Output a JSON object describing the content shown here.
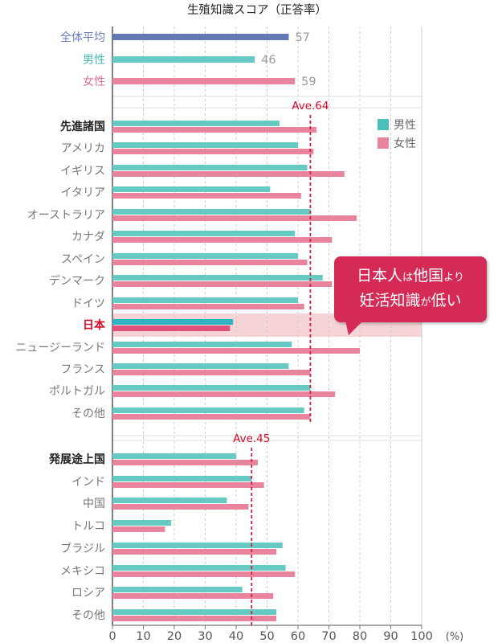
{
  "chart_data": {
    "type": "bar",
    "orientation": "horizontal",
    "title": "生殖知識スコア（正答率）",
    "x_axis": {
      "range": [
        0,
        100
      ],
      "ticks": [
        "0",
        "10",
        "20",
        "30",
        "40",
        "50",
        "60",
        "70",
        "80",
        "90",
        "100"
      ],
      "unit": "(%)"
    },
    "grid": "vertical dashed",
    "legend": {
      "position": "top-right",
      "entries": [
        {
          "label": "男性",
          "color": "#4dbfba"
        },
        {
          "label": "女性",
          "color": "#e8849e"
        }
      ]
    },
    "colors": {
      "all": "#6378b4",
      "male": "#66c9c4",
      "female": "#e8849e",
      "japan_male": "#2eb3c2",
      "japan_female": "#e0507a",
      "highlight": "#f6d3d6",
      "average_line": "#d01f3c",
      "accent_red": "#d80c2a"
    },
    "summary": [
      {
        "label": "全体平均",
        "value": 57,
        "value_label": "57",
        "color": "#6378b4",
        "label_color": "#6a7cc0"
      },
      {
        "label": "男性",
        "value": 46,
        "value_label": "46",
        "color": "#66c9c4",
        "label_color": "#46b9b4"
      },
      {
        "label": "女性",
        "value": 59,
        "value_label": "59",
        "color": "#e8849e",
        "label_color": "#e0708f"
      }
    ],
    "groups": [
      {
        "label": "先進諸国",
        "average": {
          "value": 64,
          "label": "Ave.64"
        },
        "rows": [
          {
            "label": "先進諸国",
            "male": 54,
            "female": 66
          },
          {
            "label": "アメリカ",
            "male": 60,
            "female": 65
          },
          {
            "label": "イギリス",
            "male": 63,
            "female": 75
          },
          {
            "label": "イタリア",
            "male": 51,
            "female": 61
          },
          {
            "label": "オーストラリア",
            "male": 64,
            "female": 79
          },
          {
            "label": "カナダ",
            "male": 59,
            "female": 71
          },
          {
            "label": "スペイン",
            "male": 60,
            "female": 63
          },
          {
            "label": "デンマーク",
            "male": 68,
            "female": 71
          },
          {
            "label": "ドイツ",
            "male": 60,
            "female": 62
          },
          {
            "label": "日本",
            "male": 39,
            "female": 38,
            "highlight": true
          },
          {
            "label": "ニュージーランド",
            "male": 58,
            "female": 80
          },
          {
            "label": "フランス",
            "male": 57,
            "female": 64
          },
          {
            "label": "ポルトガル",
            "male": 64,
            "female": 72
          },
          {
            "label": "その他",
            "male": 62,
            "female": 64
          }
        ]
      },
      {
        "label": "発展途上国",
        "average": {
          "value": 45,
          "label": "Ave.45"
        },
        "rows": [
          {
            "label": "発展途上国",
            "male": 40,
            "female": 47
          },
          {
            "label": "インド",
            "male": 45,
            "female": 49
          },
          {
            "label": "中国",
            "male": 37,
            "female": 44
          },
          {
            "label": "トルコ",
            "male": 19,
            "female": 17
          },
          {
            "label": "ブラジル",
            "male": 55,
            "female": 53
          },
          {
            "label": "メキシコ",
            "male": 56,
            "female": 59
          },
          {
            "label": "ロシア",
            "male": 42,
            "female": 52
          },
          {
            "label": "その他",
            "male": 53,
            "female": 53
          }
        ]
      }
    ],
    "annotation": {
      "line1_a": "日本人",
      "line1_b": "は",
      "line1_c": "他国",
      "line1_d": "より",
      "line2_a": "妊活知識",
      "line2_b": "が",
      "line2_c": "低い"
    }
  }
}
